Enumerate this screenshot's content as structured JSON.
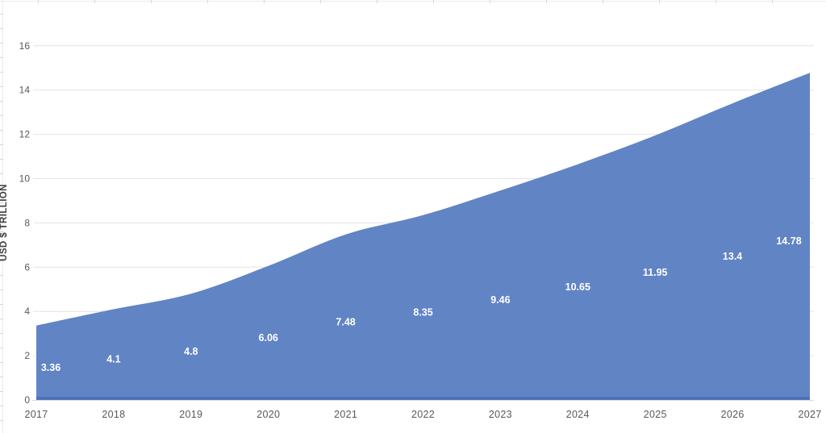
{
  "chart_data": {
    "type": "area",
    "title": "",
    "xlabel": "",
    "ylabel": "USD $ TRILLION",
    "categories": [
      "2017",
      "2018",
      "2019",
      "2020",
      "2021",
      "2022",
      "2023",
      "2024",
      "2025",
      "2026",
      "2027"
    ],
    "series": [
      {
        "name": "USD $ Trillion",
        "values": [
          3.36,
          4.1,
          4.8,
          6.06,
          7.48,
          8.35,
          9.46,
          10.65,
          11.95,
          13.4,
          14.78
        ]
      }
    ],
    "data_labels": [
      "3.36",
      "4.1",
      "4.8",
      "6.06",
      "7.48",
      "8.35",
      "9.46",
      "10.65",
      "11.95",
      "13.4",
      "14.78"
    ],
    "y_ticks": [
      0,
      2,
      4,
      6,
      8,
      10,
      12,
      14,
      16
    ],
    "ylim": [
      0,
      16
    ],
    "grid": "horizontal",
    "smooth": true,
    "legend": "none",
    "colors": {
      "area_fill": "#6184C5",
      "area_bottom_edge": "#4A70B9",
      "gridline": "#E4E4E4",
      "axis_line": "#D9D9D9",
      "tick_label": "#595959",
      "axis_title": "#404040",
      "data_label": "#FFFFFF",
      "sheet_line": "#ECECEC"
    }
  }
}
